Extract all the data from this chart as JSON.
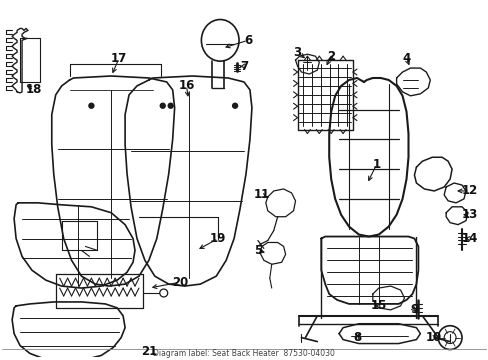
{
  "title": "Seat Back Heater",
  "part_number": "87530-04030",
  "background_color": "#ffffff",
  "line_color": "#1a1a1a",
  "text_color": "#111111",
  "fig_width": 4.89,
  "fig_height": 3.6,
  "dpi": 100,
  "bottom_text": "Diagram label: Seat Back Heater  87530-04030"
}
